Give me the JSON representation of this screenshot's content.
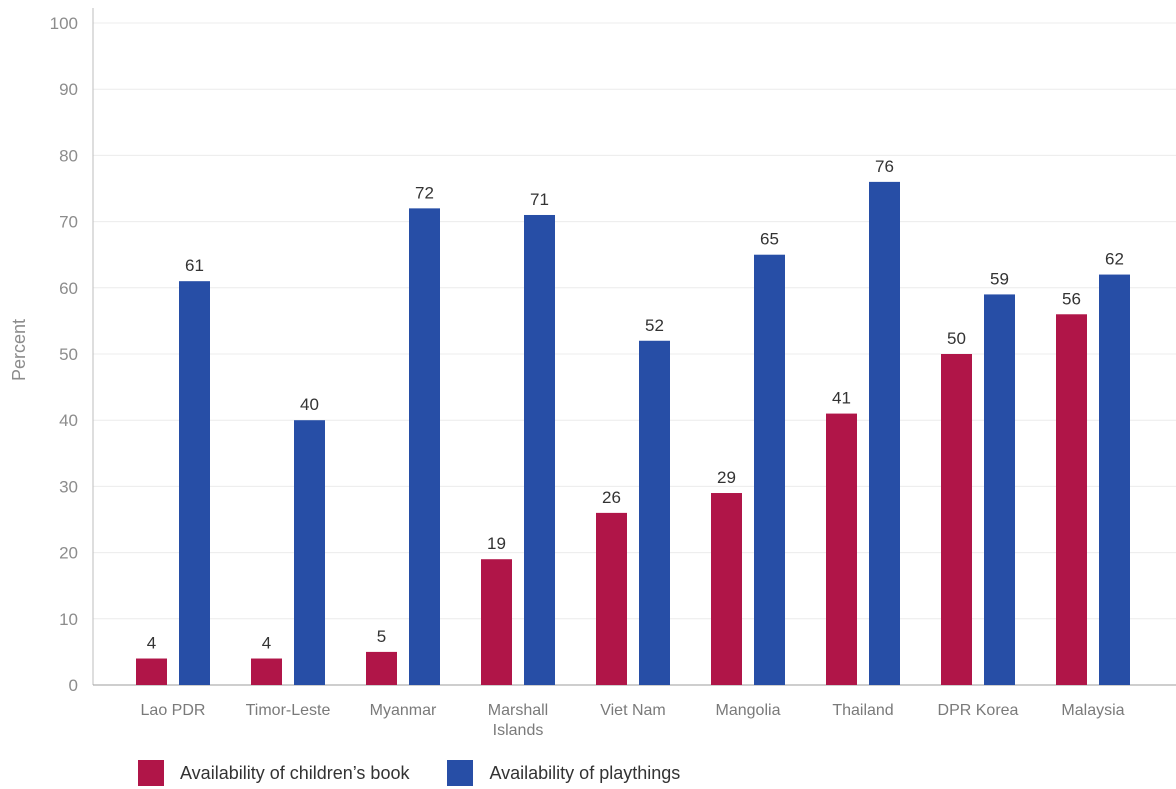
{
  "chart_data": {
    "type": "bar",
    "ylabel": "Percent",
    "ylim": [
      0,
      100
    ],
    "yticks": [
      0,
      10,
      20,
      30,
      40,
      50,
      60,
      70,
      80,
      90,
      100
    ],
    "grid": true,
    "legend_position": "bottom-left",
    "categories": [
      [
        "Lao PDR"
      ],
      [
        "Timor-Leste"
      ],
      [
        "Myanmar"
      ],
      [
        "Marshall",
        "Islands"
      ],
      [
        "Viet Nam"
      ],
      [
        "Mangolia"
      ],
      [
        "Thailand"
      ],
      [
        "DPR Korea"
      ],
      [
        "Malaysia"
      ]
    ],
    "series": [
      {
        "name": "Availability of children’s book",
        "color": "#b01548",
        "values": [
          4,
          4,
          5,
          19,
          26,
          29,
          41,
          50,
          56
        ]
      },
      {
        "name": "Availability of playthings",
        "color": "#274ea6",
        "values": [
          61,
          40,
          72,
          71,
          52,
          65,
          76,
          59,
          62
        ]
      }
    ]
  }
}
